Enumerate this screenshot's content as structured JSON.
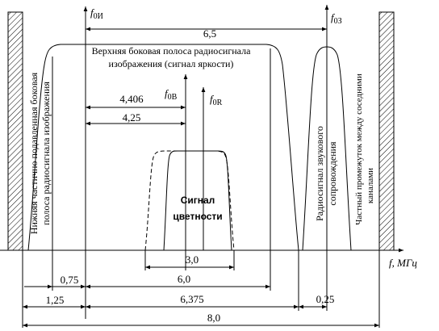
{
  "carriers": [
    {
      "symbol": "f",
      "subscript": "0И"
    },
    {
      "symbol": "f",
      "subscript": "0З"
    },
    {
      "symbol": "f",
      "subscript": "0B"
    },
    {
      "symbol": "f",
      "subscript": "0R"
    }
  ],
  "axis_label": "f, МГц",
  "regions": {
    "lower_sideband": [
      "Нижняя частично подавленная боковая",
      "полоса радиосигнала изображения"
    ],
    "upper_sideband": [
      "Верхняя боковая полоса радиосигнала",
      "изображения (сигнал яркости)"
    ],
    "chroma": [
      "Сигнал",
      "цветности"
    ],
    "sound": [
      "Радиосигнал звукового",
      "сопровождения"
    ],
    "guard": [
      "Частный промежуток между соседними",
      "каналами"
    ]
  },
  "dimensions": [
    "6,5",
    "4,406",
    "4,25",
    "3,0",
    "0,75",
    "6,0",
    "1,25",
    "6,375",
    "0,25",
    "8,0"
  ]
}
